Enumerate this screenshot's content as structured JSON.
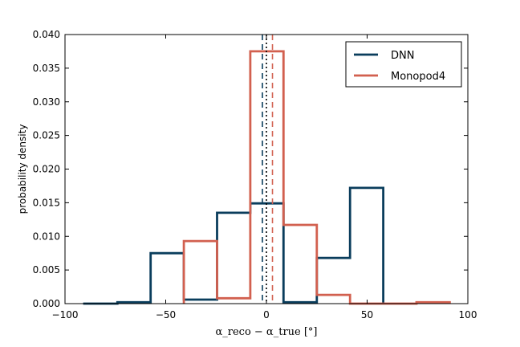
{
  "chart_data": {
    "type": "histogram",
    "xlabel": "α_reco − α_true  [°]",
    "ylabel": "probability density",
    "xlim": [
      -100,
      100
    ],
    "ylim": [
      0,
      0.04
    ],
    "x_ticks": [
      "−100",
      "−50",
      "0",
      "50",
      "100"
    ],
    "x_tick_values": [
      -100,
      -50,
      0,
      50,
      100
    ],
    "y_ticks": [
      "0.000",
      "0.005",
      "0.010",
      "0.015",
      "0.020",
      "0.025",
      "0.030",
      "0.035",
      "0.040"
    ],
    "y_tick_values": [
      0,
      0.005,
      0.01,
      0.015,
      0.02,
      0.025,
      0.03,
      0.035,
      0.04
    ],
    "legend_position": "top-right",
    "series": [
      {
        "name": "DNN",
        "color": "#0a3d5c",
        "bin_edges": [
          -91,
          -74,
          -57.5,
          -41,
          -24.5,
          -8,
          8.5,
          25,
          41.5,
          58
        ],
        "density": [
          0.0,
          0.0002,
          0.0075,
          0.0006,
          0.0135,
          0.0149,
          0.0002,
          0.0068,
          0.0172
        ],
        "line_x": -2,
        "line_style": "dashed"
      },
      {
        "name": "Monopod4",
        "color": "#d2604f",
        "bin_edges": [
          -41,
          -24.5,
          -8,
          8.5,
          25,
          41.5,
          58,
          74.5,
          91
        ],
        "density": [
          0.0093,
          0.0008,
          0.0375,
          0.0117,
          0.0013,
          0.0,
          0.0,
          0.0002
        ],
        "line_x": 3,
        "line_style": "dashed"
      }
    ],
    "reference_line": {
      "x": 0,
      "style": "dotted",
      "color": "#000000"
    }
  }
}
